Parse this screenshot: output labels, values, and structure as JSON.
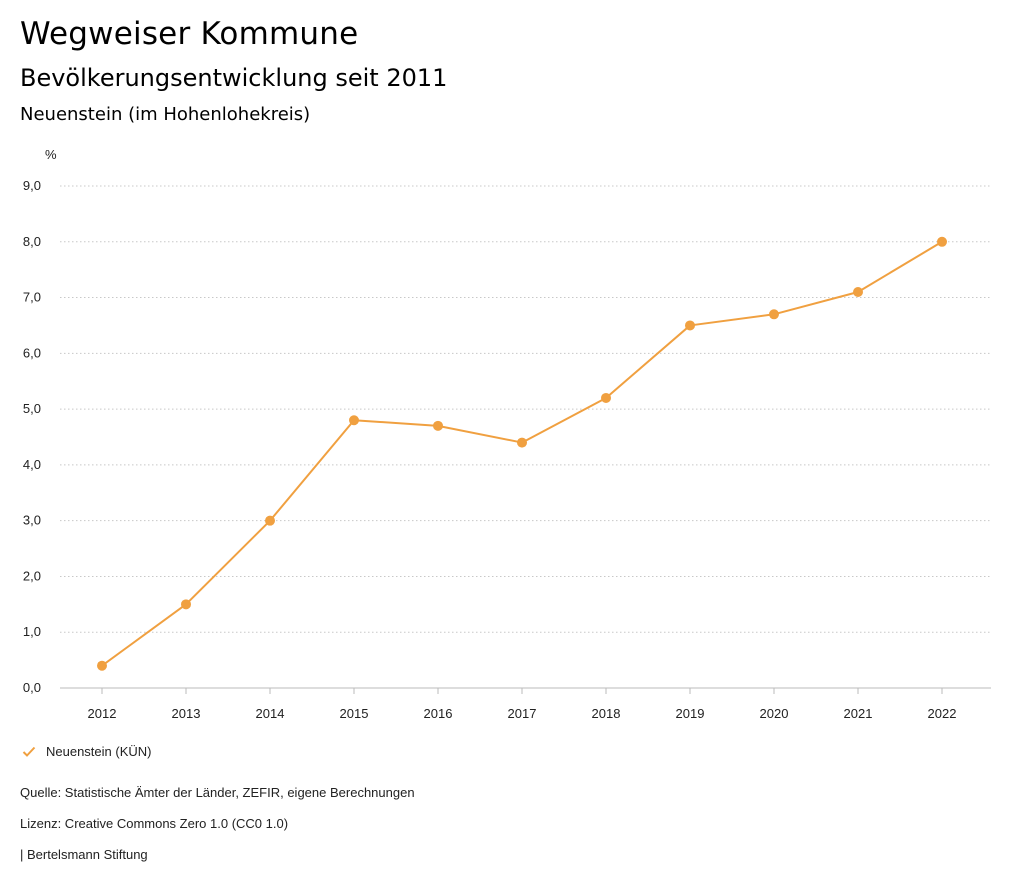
{
  "header": {
    "app_title": "Wegweiser Kommune",
    "chart_title": "Bevölkerungsentwicklung seit 2011",
    "chart_subtitle": "Neuenstein (im Hohenlohekreis)"
  },
  "chart_data": {
    "type": "line",
    "title": "Bevölkerungsentwicklung seit 2011",
    "subtitle": "Neuenstein (im Hohenlohekreis)",
    "ylabel": "%",
    "xlabel": "",
    "categories": [
      "2012",
      "2013",
      "2014",
      "2015",
      "2016",
      "2017",
      "2018",
      "2019",
      "2020",
      "2021",
      "2022"
    ],
    "series": [
      {
        "name": "Neuenstein (KÜN)",
        "color": "#f0a040",
        "values": [
          0.4,
          1.5,
          3.0,
          4.8,
          4.7,
          4.4,
          5.2,
          6.5,
          6.7,
          7.1,
          8.0
        ]
      }
    ],
    "ylim": [
      0,
      9
    ],
    "yticks": [
      0,
      1,
      2,
      3,
      4,
      5,
      6,
      7,
      8,
      9
    ],
    "ytick_labels": [
      "0,0",
      "1,0",
      "2,0",
      "3,0",
      "4,0",
      "5,0",
      "6,0",
      "7,0",
      "8,0",
      "9,0"
    ],
    "grid": true,
    "legend": "bottom-left"
  },
  "legend": {
    "icon": "check-icon",
    "label": "Neuenstein (KÜN)"
  },
  "footer": {
    "source": "Quelle: Statistische Ämter der Länder, ZEFIR, eigene Berechnungen",
    "license": "Lizenz: Creative Commons Zero 1.0 (CC0 1.0)",
    "publisher": "| Bertelsmann Stiftung"
  }
}
